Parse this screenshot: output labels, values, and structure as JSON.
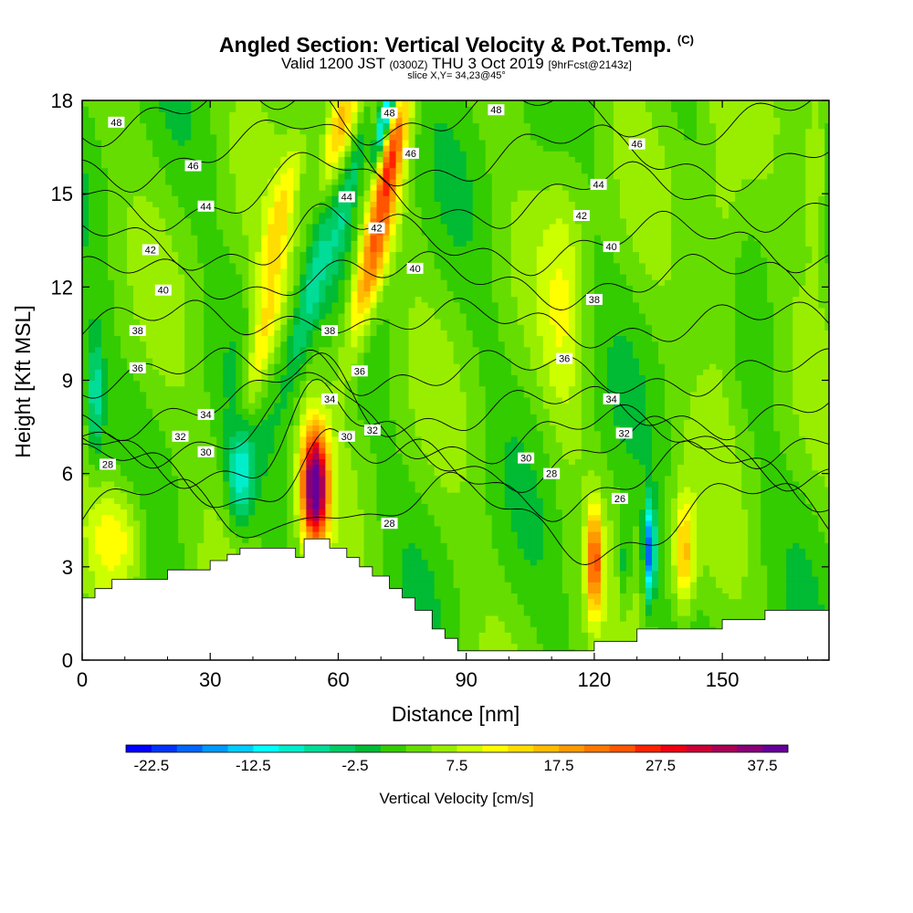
{
  "header": {
    "title": "Angled Section: Vertical Velocity & Pot.Temp.",
    "title_mark": "(C)",
    "valid_prefix": "Valid 1200 JST",
    "valid_utc": "(0300Z)",
    "valid_date": "THU 3 Oct 2019",
    "forecast": "[9hrFcst@2143z]",
    "slice": "slice X,Y= 34,23@45°"
  },
  "chart_data": {
    "type": "heatmap",
    "xlabel": "Distance [nm]",
    "ylabel": "Height [Kft MSL]",
    "xlim": [
      0,
      175
    ],
    "ylim": [
      0,
      18
    ],
    "x_ticks": [
      "0",
      "30",
      "60",
      "90",
      "120",
      "150"
    ],
    "y_ticks": [
      "0",
      "3",
      "6",
      "9",
      "12",
      "15",
      "18"
    ],
    "fill_variable": "Vertical Velocity [cm/s]",
    "contour_variable": "Pot.Temp.",
    "colorbar": {
      "label": "Vertical Velocity [cm/s]",
      "tick_labels": [
        "-22.5",
        "-12.5",
        "-2.5",
        "7.5",
        "17.5",
        "27.5",
        "37.5"
      ],
      "levels": [
        -25,
        -22.5,
        -20,
        -17.5,
        -15,
        -12.5,
        -10,
        -7.5,
        -5,
        -2.5,
        0,
        2.5,
        5,
        7.5,
        10,
        12.5,
        15,
        17.5,
        20,
        22.5,
        25,
        27.5,
        30,
        32.5,
        35,
        37.5
      ],
      "colors": [
        "#0000ff",
        "#0033ff",
        "#0066ff",
        "#0099ff",
        "#00ccff",
        "#00ffff",
        "#00eecc",
        "#00dd99",
        "#00cc66",
        "#00bb33",
        "#33cc00",
        "#66dd00",
        "#99ee00",
        "#ccff00",
        "#ffff00",
        "#ffdd00",
        "#ffbb00",
        "#ff9900",
        "#ff7700",
        "#ff5500",
        "#ff2200",
        "#ee0011",
        "#cc0033",
        "#aa0055",
        "#880077",
        "#660099"
      ]
    },
    "updrafts": [
      {
        "x": 54.5,
        "z": 5.6,
        "w": 37.5,
        "sx": 3,
        "sz": 1.8
      },
      {
        "x": 68,
        "z": 13.0,
        "w": 20,
        "sx": 3.5,
        "sz": 3
      },
      {
        "x": 73,
        "z": 16.5,
        "w": 15,
        "sx": 2.5,
        "sz": 2
      },
      {
        "x": 60,
        "z": 17.0,
        "w": 12,
        "sx": 3,
        "sz": 2
      },
      {
        "x": 42,
        "z": 10.0,
        "w": 10,
        "sx": 3,
        "sz": 2.5
      },
      {
        "x": 46,
        "z": 14.0,
        "w": 8,
        "sx": 3,
        "sz": 3
      },
      {
        "x": 8,
        "z": 4.0,
        "w": 10,
        "sx": 7,
        "sz": 1.8
      },
      {
        "x": 120,
        "z": 3.2,
        "w": 20,
        "sx": 1.7,
        "sz": 1.7
      },
      {
        "x": 141,
        "z": 3.4,
        "w": 13,
        "sx": 2.5,
        "sz": 1.8
      },
      {
        "x": 113,
        "z": 12.0,
        "w": 5,
        "sx": 5,
        "sz": 5
      },
      {
        "x": 150,
        "z": 13.0,
        "w": 5,
        "sx": 5,
        "sz": 5
      },
      {
        "x": 172,
        "z": 16.0,
        "w": 7,
        "sx": 3,
        "sz": 3
      }
    ],
    "downdrafts": [
      {
        "x": 71,
        "z": 17.5,
        "w": -20,
        "sx": 1.6,
        "sz": 1.5
      },
      {
        "x": 3,
        "z": 8.5,
        "w": -10,
        "sx": 2,
        "sz": 2
      },
      {
        "x": 37,
        "z": 6.0,
        "w": -12,
        "sx": 3,
        "sz": 1.6
      },
      {
        "x": 53,
        "z": 11.5,
        "w": -9,
        "sx": 3,
        "sz": 3
      },
      {
        "x": 64,
        "z": 16.0,
        "w": -7,
        "sx": 2,
        "sz": 3
      },
      {
        "x": 133,
        "z": 3.5,
        "w": -22.5,
        "sx": 1.3,
        "sz": 1.5
      },
      {
        "x": 127,
        "z": 3.0,
        "w": -6,
        "sx": 1.5,
        "sz": 1.5
      }
    ],
    "terrain": {
      "x": [
        0,
        3,
        3,
        7,
        7,
        10,
        10,
        20,
        20,
        30,
        30,
        34,
        34,
        37,
        37,
        50,
        50,
        52,
        52,
        58,
        58,
        62,
        62,
        65,
        65,
        68,
        68,
        72,
        72,
        75,
        75,
        78,
        78,
        82,
        82,
        85,
        85,
        88,
        88,
        90,
        90,
        120,
        120,
        130,
        130,
        150,
        150,
        160,
        160,
        165,
        165,
        170,
        170,
        175
      ],
      "z": [
        2.0,
        2.0,
        2.3,
        2.3,
        2.6,
        2.6,
        2.6,
        2.6,
        2.9,
        2.9,
        3.2,
        3.2,
        3.4,
        3.4,
        3.6,
        3.6,
        3.3,
        3.3,
        3.9,
        3.9,
        3.6,
        3.6,
        3.3,
        3.3,
        3.0,
        3.0,
        2.7,
        2.7,
        2.3,
        2.3,
        2.0,
        2.0,
        1.6,
        1.6,
        1.0,
        1.0,
        0.7,
        0.7,
        0.3,
        0.3,
        0.3,
        0.3,
        0.6,
        0.6,
        1.0,
        1.0,
        1.3,
        1.3,
        1.6,
        1.6,
        1.6,
        1.6,
        1.6,
        1.6
      ]
    },
    "theta_contours": [
      {
        "value": 26,
        "z": 4.5,
        "amp": 1.2
      },
      {
        "value": 28,
        "z": 5.8,
        "amp": 1.0
      },
      {
        "value": 30,
        "z": 6.6,
        "amp": 0.9
      },
      {
        "value": 32,
        "z": 7.2,
        "amp": 0.7
      },
      {
        "value": 34,
        "z": 8.0,
        "amp": 0.6
      },
      {
        "value": 36,
        "z": 9.2,
        "amp": 0.5
      },
      {
        "value": 38,
        "z": 10.8,
        "amp": 0.5
      },
      {
        "value": 40,
        "z": 12.2,
        "amp": 0.6
      },
      {
        "value": 42,
        "z": 13.4,
        "amp": 0.7
      },
      {
        "value": 44,
        "z": 14.9,
        "amp": 0.8
      },
      {
        "value": 46,
        "z": 16.2,
        "amp": 0.8
      },
      {
        "value": 48,
        "z": 17.5,
        "amp": 0.7
      }
    ],
    "contour_labels": [
      {
        "text": "48",
        "x": 8,
        "z": 17.3
      },
      {
        "text": "48",
        "x": 72,
        "z": 17.6
      },
      {
        "text": "48",
        "x": 97,
        "z": 17.7
      },
      {
        "text": "46",
        "x": 26,
        "z": 15.9
      },
      {
        "text": "46",
        "x": 77,
        "z": 16.3
      },
      {
        "text": "46",
        "x": 130,
        "z": 16.6
      },
      {
        "text": "44",
        "x": 29,
        "z": 14.6
      },
      {
        "text": "44",
        "x": 62,
        "z": 14.9
      },
      {
        "text": "44",
        "x": 121,
        "z": 15.3
      },
      {
        "text": "42",
        "x": 16,
        "z": 13.2
      },
      {
        "text": "42",
        "x": 69,
        "z": 13.9
      },
      {
        "text": "42",
        "x": 117,
        "z": 14.3
      },
      {
        "text": "40",
        "x": 19,
        "z": 11.9
      },
      {
        "text": "40",
        "x": 78,
        "z": 12.6
      },
      {
        "text": "40",
        "x": 124,
        "z": 13.3
      },
      {
        "text": "38",
        "x": 13,
        "z": 10.6
      },
      {
        "text": "38",
        "x": 58,
        "z": 10.6
      },
      {
        "text": "38",
        "x": 120,
        "z": 11.6
      },
      {
        "text": "36",
        "x": 13,
        "z": 9.4
      },
      {
        "text": "36",
        "x": 65,
        "z": 9.3
      },
      {
        "text": "36",
        "x": 113,
        "z": 9.7
      },
      {
        "text": "34",
        "x": 29,
        "z": 7.9
      },
      {
        "text": "34",
        "x": 58,
        "z": 8.4
      },
      {
        "text": "34",
        "x": 124,
        "z": 8.4
      },
      {
        "text": "32",
        "x": 23,
        "z": 7.2
      },
      {
        "text": "32",
        "x": 68,
        "z": 7.4
      },
      {
        "text": "32",
        "x": 127,
        "z": 7.3
      },
      {
        "text": "30",
        "x": 29,
        "z": 6.7
      },
      {
        "text": "30",
        "x": 62,
        "z": 7.2
      },
      {
        "text": "30",
        "x": 104,
        "z": 6.5
      },
      {
        "text": "28",
        "x": 6,
        "z": 6.3
      },
      {
        "text": "28",
        "x": 72,
        "z": 4.4
      },
      {
        "text": "28",
        "x": 110,
        "z": 6.0
      },
      {
        "text": "26",
        "x": 126,
        "z": 5.2
      }
    ]
  }
}
